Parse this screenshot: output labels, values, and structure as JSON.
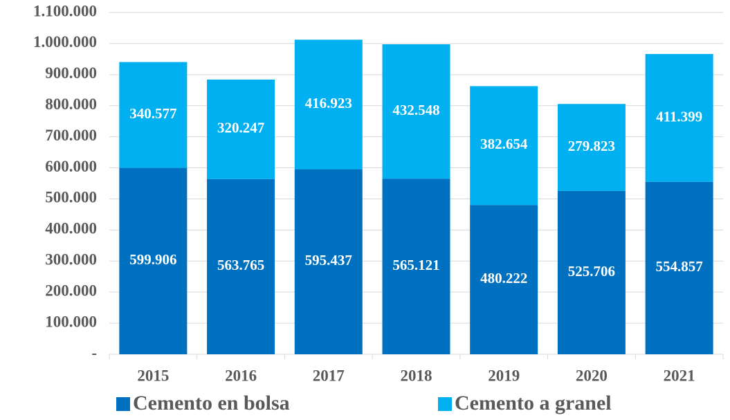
{
  "chart_data": {
    "type": "bar",
    "stacked": true,
    "categories": [
      "2015",
      "2016",
      "2017",
      "2018",
      "2019",
      "2020",
      "2021"
    ],
    "series": [
      {
        "name": "Cemento en bolsa",
        "color": "#0070c0",
        "values": [
          599906,
          563765,
          595437,
          565121,
          480222,
          525706,
          554857
        ],
        "value_labels": [
          "599.906",
          "563.765",
          "595.437",
          "565.121",
          "480.222",
          "525.706",
          "554.857"
        ]
      },
      {
        "name": "Cemento a granel",
        "color": "#00b0f0",
        "values": [
          340577,
          320247,
          416923,
          432548,
          382654,
          279823,
          411399
        ],
        "value_labels": [
          "340.577",
          "320.247",
          "416.923",
          "432.548",
          "382.654",
          "279.823",
          "411.399"
        ]
      }
    ],
    "ylim": [
      0,
      1100000
    ],
    "yticks": [
      {
        "value": 0,
        "label": "-"
      },
      {
        "value": 100000,
        "label": "100.000"
      },
      {
        "value": 200000,
        "label": "200.000"
      },
      {
        "value": 300000,
        "label": "300.000"
      },
      {
        "value": 400000,
        "label": "400.000"
      },
      {
        "value": 500000,
        "label": "500.000"
      },
      {
        "value": 600000,
        "label": "600.000"
      },
      {
        "value": 700000,
        "label": "700.000"
      },
      {
        "value": 800000,
        "label": "800.000"
      },
      {
        "value": 900000,
        "label": "900.000"
      },
      {
        "value": 1000000,
        "label": "1.000.000"
      },
      {
        "value": 1100000,
        "label": "1.100.000"
      }
    ],
    "grid": true,
    "legend": "bottom"
  }
}
